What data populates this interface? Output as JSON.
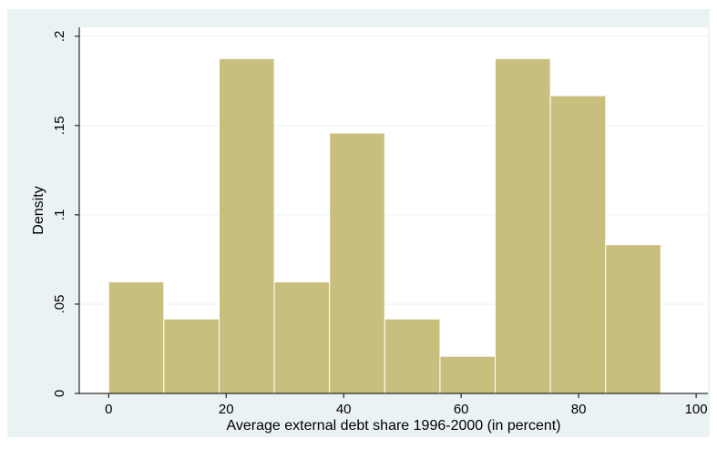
{
  "chart_data": {
    "type": "bar",
    "subtype": "histogram",
    "xlabel": "Average external debt share 1996-2000 (in percent)",
    "ylabel": "Density",
    "xlim": [
      -5,
      102
    ],
    "ylim": [
      0,
      0.205
    ],
    "x_ticks": [
      0,
      20,
      40,
      60,
      80,
      100
    ],
    "x_tick_labels": [
      "0",
      "20",
      "40",
      "60",
      "80",
      "100"
    ],
    "y_ticks": [
      0,
      0.05,
      0.1,
      0.15,
      0.2
    ],
    "y_tick_labels": [
      "0",
      ".05",
      ".1",
      ".15",
      ".2"
    ],
    "bins": [
      {
        "start": 0.0,
        "end": 9.4,
        "density": 0.0625
      },
      {
        "start": 9.4,
        "end": 18.8,
        "density": 0.0417
      },
      {
        "start": 18.8,
        "end": 28.2,
        "density": 0.1875
      },
      {
        "start": 28.2,
        "end": 37.6,
        "density": 0.0625
      },
      {
        "start": 37.6,
        "end": 47.0,
        "density": 0.1458
      },
      {
        "start": 47.0,
        "end": 56.4,
        "density": 0.0417
      },
      {
        "start": 56.4,
        "end": 65.8,
        "density": 0.0208
      },
      {
        "start": 65.8,
        "end": 75.2,
        "density": 0.1875
      },
      {
        "start": 75.2,
        "end": 84.6,
        "density": 0.1667
      },
      {
        "start": 84.6,
        "end": 94.0,
        "density": 0.0833
      }
    ],
    "grid": true,
    "legend": "none",
    "colors": {
      "outer_background": "#eaf2f3",
      "plot_background": "#ffffff",
      "bar_fill": "#c8bf7e",
      "bar_edge": "#ffffff",
      "grid": "#eaf2f3",
      "axis": "#000000"
    }
  }
}
